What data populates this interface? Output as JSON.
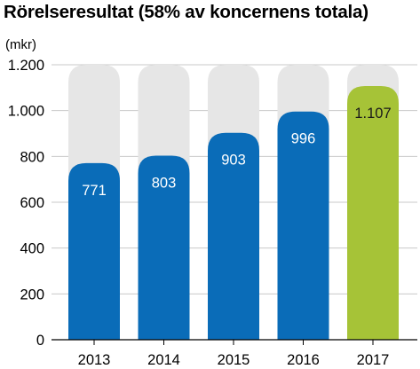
{
  "chart_data": {
    "type": "bar",
    "title": "Rörelseresultat (58% av koncernens totala)",
    "ylabel": "(mkr)",
    "categories": [
      "2013",
      "2014",
      "2015",
      "2016",
      "2017"
    ],
    "values": [
      771,
      803,
      903,
      996,
      1107
    ],
    "value_labels": [
      "771",
      "803",
      "903",
      "996",
      "1.107"
    ],
    "ylim": [
      0,
      1200
    ],
    "yticks": [
      0,
      200,
      400,
      600,
      800,
      1000,
      1200
    ],
    "ytick_labels": [
      "0",
      "200",
      "400",
      "600",
      "800",
      "1.000",
      "1.200"
    ],
    "grid": true,
    "legend": "none"
  },
  "colors": {
    "bar": "#0a6cb8",
    "highlight_bar": "#a6c337",
    "background_bar": "#e6e6e6",
    "grid": "#c8c8c8",
    "value_text_on_blue": "#ffffff",
    "value_text_on_green": "#1a1a1a"
  }
}
